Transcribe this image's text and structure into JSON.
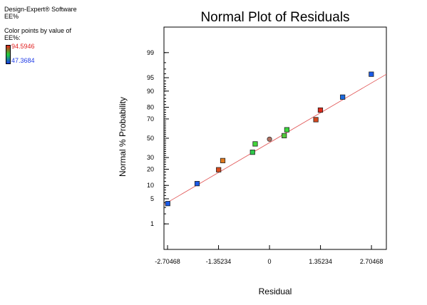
{
  "sidebar": {
    "software": "Design-Expert® Software",
    "response": "EE%",
    "color_caption": "Color points by value of",
    "color_response": "EE%:",
    "color_max": "94.5946",
    "color_min": "47.3684"
  },
  "colors": {
    "high": "#e8221b",
    "mid": "#1fd03a",
    "low": "#1a5ae8",
    "fit_line": "#e05050"
  },
  "chart_data": {
    "type": "scatter",
    "title": "Normal Plot of Residuals",
    "xlabel": "Residual",
    "ylabel": "Normal % Probability",
    "xlim": [
      -2.8,
      3.1
    ],
    "y_scale": "normal-probability",
    "x_ticks": [
      -2.70468,
      -1.35234,
      0,
      1.35234,
      2.70468
    ],
    "x_tick_labels": [
      "-2.70468",
      "-1.35234",
      "0",
      "1.35234",
      "2.70468"
    ],
    "y_ticks": [
      1,
      5,
      10,
      20,
      30,
      50,
      70,
      80,
      90,
      95,
      99
    ],
    "y_tick_labels": [
      "1",
      "5",
      "10",
      "20",
      "30",
      "50",
      "70",
      "80",
      "90",
      "95",
      "99"
    ],
    "fit_line": [
      [
        -2.8,
        3.6
      ],
      [
        3.1,
        95.9
      ]
    ],
    "points": [
      {
        "x": -2.7,
        "y": 3.8,
        "color": "#1a5ae8"
      },
      {
        "x": -1.92,
        "y": 10.9,
        "color": "#1a5ae8"
      },
      {
        "x": -1.35,
        "y": 19.6,
        "color": "#d94a1c"
      },
      {
        "x": -1.24,
        "y": 27.2,
        "color": "#e07a1f"
      },
      {
        "x": -0.45,
        "y": 35.2,
        "color": "#2ec84a"
      },
      {
        "x": -0.38,
        "y": 43.9,
        "color": "#44d63c"
      },
      {
        "x": 0.0,
        "y": 49.0,
        "color": "#b07060"
      },
      {
        "x": 0.39,
        "y": 52.8,
        "color": "#54c83c"
      },
      {
        "x": 0.46,
        "y": 59.1,
        "color": "#3ad83c"
      },
      {
        "x": 1.23,
        "y": 69.3,
        "color": "#d8481e"
      },
      {
        "x": 1.35,
        "y": 77.8,
        "color": "#e02a1a"
      },
      {
        "x": 1.94,
        "y": 86.8,
        "color": "#1a6ae0"
      },
      {
        "x": 2.7,
        "y": 95.9,
        "color": "#1a5ae8"
      }
    ]
  }
}
